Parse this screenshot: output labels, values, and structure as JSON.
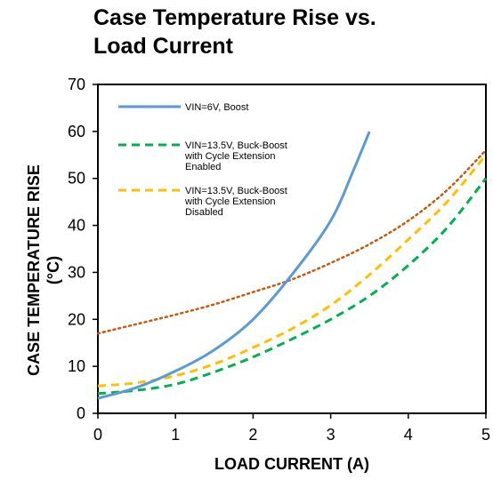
{
  "chart_data": {
    "type": "line",
    "title_lines": [
      "Case Temperature Rise vs.",
      "Load Current"
    ],
    "xlabel": "LOAD CURRENT (A)",
    "ylabel_lines": [
      "CASE TEMPERATURE RISE",
      "(°C)"
    ],
    "xlim": [
      0,
      5
    ],
    "ylim": [
      0,
      70
    ],
    "xticks": [
      0,
      1,
      2,
      3,
      4,
      5
    ],
    "yticks": [
      0,
      10,
      20,
      30,
      40,
      50,
      60,
      70
    ],
    "grid": false,
    "legend_position": "top-left",
    "series": [
      {
        "name": "VIN=6V, Boost",
        "legend_lines": [
          "VIN=6V, Boost"
        ],
        "color": "#5b9bd5",
        "style": "solid",
        "x": [
          0,
          0.5,
          1,
          1.5,
          2,
          2.5,
          3,
          3.3,
          3.5
        ],
        "y": [
          3.2,
          5.5,
          9,
          13.5,
          20,
          29.5,
          41,
          52,
          60
        ]
      },
      {
        "name": "VIN=13.5V, Buck-Boost with Cycle Extension Enabled",
        "legend_lines": [
          "VIN=13.5V, Buck-Boost",
          "with Cycle Extension",
          "Enabled"
        ],
        "color": "#00b050",
        "style": "dashed",
        "x": [
          0,
          0.5,
          1,
          1.5,
          2,
          2.5,
          3,
          3.5,
          4,
          4.5,
          5
        ],
        "y": [
          4.2,
          4.9,
          6.2,
          8.8,
          12,
          15.8,
          20,
          25,
          31.5,
          39.5,
          50
        ]
      },
      {
        "name": "VIN=13.5V, Buck-Boost with Cycle Extension Disabled",
        "legend_lines": [
          "VIN=13.5V, Buck-Boost",
          "with Cycle Extension",
          "Disabled"
        ],
        "color": "#ffc000",
        "style": "dashed",
        "x": [
          0,
          0.5,
          1,
          1.5,
          2,
          2.5,
          3,
          3.5,
          4,
          4.5,
          5
        ],
        "y": [
          5.8,
          6.5,
          8,
          10.5,
          14,
          18,
          23,
          29.5,
          37,
          45,
          55
        ]
      },
      {
        "legend_lines": [],
        "color": "#c55a11",
        "style": "dotted",
        "x": [
          0,
          0.5,
          1,
          1.5,
          2,
          2.5,
          3,
          3.5,
          4,
          4.5,
          5
        ],
        "y": [
          17,
          19,
          21,
          23.2,
          25.8,
          28.5,
          32,
          36,
          41,
          47.5,
          56
        ]
      }
    ]
  }
}
